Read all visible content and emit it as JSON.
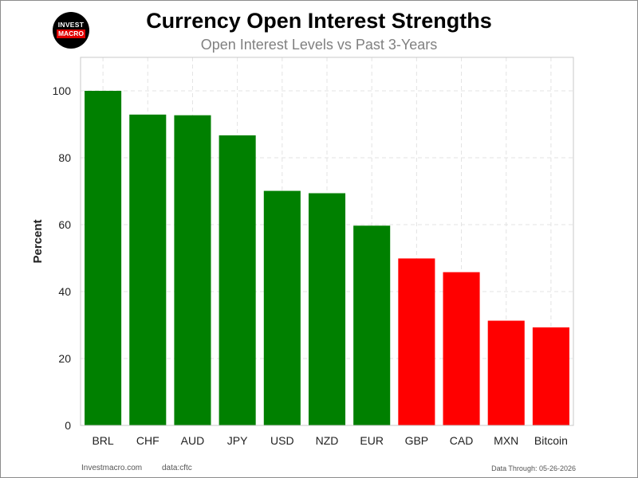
{
  "logo": {
    "top": "INVEST",
    "bottom": "MACRO"
  },
  "chart_data": {
    "type": "bar",
    "title": "Currency Open Interest Strengths",
    "subtitle": "Open Interest Levels vs Past 3-Years",
    "ylabel": "Percent",
    "xlabel": "",
    "ylim": [
      0,
      110
    ],
    "yticks": [
      0,
      20,
      40,
      60,
      80,
      100
    ],
    "grid": true,
    "categories": [
      "BRL",
      "CHF",
      "AUD",
      "JPY",
      "USD",
      "NZD",
      "EUR",
      "GBP",
      "CAD",
      "MXN",
      "Bitcoin"
    ],
    "values": [
      100,
      92.9,
      92.7,
      86.7,
      70.1,
      69.4,
      59.7,
      49.9,
      45.8,
      31.3,
      29.3
    ],
    "colors": [
      "#008000",
      "#008000",
      "#008000",
      "#008000",
      "#008000",
      "#008000",
      "#008000",
      "#ff0000",
      "#ff0000",
      "#ff0000",
      "#ff0000"
    ]
  },
  "footer": {
    "site": "Investmacro.com",
    "source": "data:cftc",
    "date": "Data Through: 05-26-2026"
  }
}
